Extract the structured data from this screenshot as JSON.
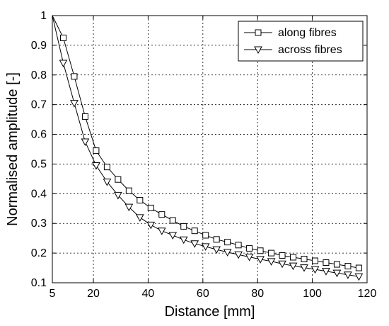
{
  "chart_data": {
    "type": "line",
    "xlabel": "Distance [mm]",
    "ylabel": "Normalised amplitude [-]",
    "xlim": [
      5,
      120
    ],
    "ylim": [
      0.1,
      1
    ],
    "xticks": [
      "5",
      "20",
      "40",
      "60",
      "80",
      "100",
      "120"
    ],
    "yticks": [
      "0.1",
      "0.2",
      "0.3",
      "0.4",
      "0.5",
      "0.6",
      "0.7",
      "0.8",
      "0.9",
      "1"
    ],
    "grid": true,
    "legend_position": "top-right",
    "series": [
      {
        "name": "along fibres",
        "marker": "square",
        "x": [
          5,
          9,
          13,
          17,
          21,
          25,
          29,
          33,
          37,
          41,
          45,
          49,
          53,
          57,
          61,
          65,
          69,
          73,
          77,
          81,
          85,
          89,
          93,
          97,
          101,
          105,
          109,
          113,
          117
        ],
        "y": [
          1.0,
          0.925,
          0.795,
          0.66,
          0.545,
          0.49,
          0.448,
          0.41,
          0.378,
          0.352,
          0.33,
          0.31,
          0.29,
          0.275,
          0.26,
          0.246,
          0.237,
          0.227,
          0.216,
          0.208,
          0.2,
          0.192,
          0.186,
          0.18,
          0.174,
          0.168,
          0.162,
          0.156,
          0.15
        ]
      },
      {
        "name": "across fibres",
        "marker": "triangle-down",
        "x": [
          5,
          9,
          13,
          17,
          21,
          25,
          29,
          33,
          37,
          41,
          45,
          49,
          53,
          57,
          61,
          65,
          69,
          73,
          77,
          81,
          85,
          89,
          93,
          97,
          101,
          105,
          109,
          113,
          117
        ],
        "y": [
          1.0,
          0.84,
          0.705,
          0.575,
          0.495,
          0.44,
          0.395,
          0.355,
          0.32,
          0.295,
          0.275,
          0.26,
          0.245,
          0.232,
          0.222,
          0.212,
          0.203,
          0.195,
          0.187,
          0.179,
          0.172,
          0.164,
          0.157,
          0.151,
          0.145,
          0.139,
          0.133,
          0.127,
          0.121
        ]
      }
    ]
  }
}
